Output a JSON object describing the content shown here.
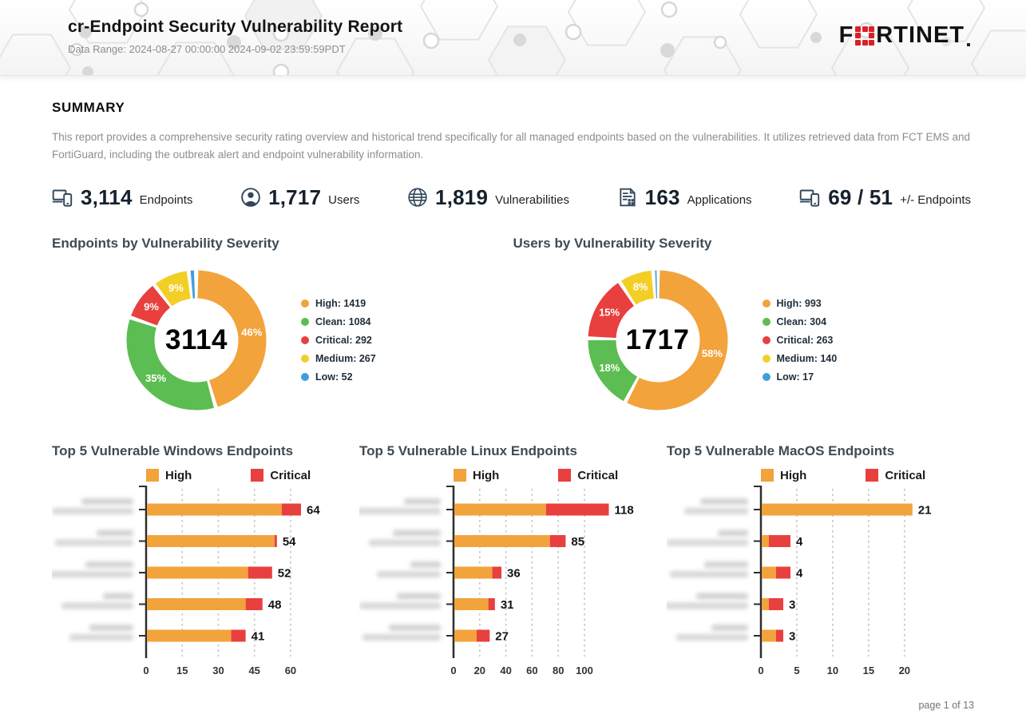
{
  "header": {
    "title": "cr-Endpoint Security Vulnerability Report",
    "date_range": "Data Range: 2024-08-27 00:00:00 2024-09-02 23:59:59PDT",
    "logo_text_left": "F",
    "logo_text_right": "RTINET"
  },
  "summary": {
    "heading": "SUMMARY",
    "description": "This report provides a comprehensive security rating overview and historical trend specifically for all managed endpoints based on the vulnerabilities. It utilizes retrieved data from FCT EMS and FortiGuard, including the outbreak alert and endpoint vulnerability information."
  },
  "stats": [
    {
      "icon": "devices-icon",
      "value": "3,114",
      "label": "Endpoints"
    },
    {
      "icon": "user-icon",
      "value": "1,717",
      "label": "Users"
    },
    {
      "icon": "globe-icon",
      "value": "1,819",
      "label": "Vulnerabilities"
    },
    {
      "icon": "applications-icon",
      "value": "163",
      "label": "Applications"
    },
    {
      "icon": "devices-change-icon",
      "value": "69 / 51",
      "label": "+/- Endpoints"
    }
  ],
  "colors": {
    "high": "#f2a33c",
    "clean": "#5cbd52",
    "critical": "#e8403e",
    "medium": "#f3cf26",
    "low": "#3f9fdc",
    "icon": "#33475b",
    "brand_red": "#da2026"
  },
  "chart_data": [
    {
      "type": "pie",
      "variant": "donut",
      "title": "Endpoints by Vulnerability Severity",
      "total": 3114,
      "legend_position": "right",
      "segments": [
        {
          "label": "High",
          "value": 1419,
          "pct_label": "46%",
          "color": "#f2a33c"
        },
        {
          "label": "Clean",
          "value": 1084,
          "pct_label": "35%",
          "color": "#5cbd52"
        },
        {
          "label": "Critical",
          "value": 292,
          "pct_label": "9%",
          "color": "#e8403e"
        },
        {
          "label": "Medium",
          "value": 267,
          "pct_label": "9%",
          "color": "#f3cf26"
        },
        {
          "label": "Low",
          "value": 52,
          "pct_label": "",
          "color": "#3f9fdc"
        }
      ]
    },
    {
      "type": "pie",
      "variant": "donut",
      "title": "Users by Vulnerability Severity",
      "total": 1717,
      "legend_position": "right",
      "segments": [
        {
          "label": "High",
          "value": 993,
          "pct_label": "58%",
          "color": "#f2a33c"
        },
        {
          "label": "Clean",
          "value": 304,
          "pct_label": "18%",
          "color": "#5cbd52"
        },
        {
          "label": "Critical",
          "value": 263,
          "pct_label": "15%",
          "color": "#e8403e"
        },
        {
          "label": "Medium",
          "value": 140,
          "pct_label": "8%",
          "color": "#f3cf26"
        },
        {
          "label": "Low",
          "value": 17,
          "pct_label": "",
          "color": "#3f9fdc"
        }
      ]
    },
    {
      "type": "bar",
      "orientation": "horizontal",
      "title": "Top 5 Vulnerable Windows Endpoints",
      "legend": [
        "High",
        "Critical"
      ],
      "x_ticks": [
        0,
        15,
        30,
        45,
        60
      ],
      "x_end": 65,
      "labels_redacted": true,
      "bars": [
        {
          "total": 64,
          "high": 56,
          "critical": 8
        },
        {
          "total": 54,
          "high": 53,
          "critical": 1
        },
        {
          "total": 52,
          "high": 42,
          "critical": 10
        },
        {
          "total": 48,
          "high": 41,
          "critical": 7
        },
        {
          "total": 41,
          "high": 35,
          "critical": 6
        }
      ]
    },
    {
      "type": "bar",
      "orientation": "horizontal",
      "title": "Top 5 Vulnerable Linux Endpoints",
      "legend": [
        "High",
        "Critical"
      ],
      "x_ticks": [
        0,
        20,
        40,
        60,
        80,
        100
      ],
      "x_end": 119.5,
      "labels_redacted": true,
      "bars": [
        {
          "total": 118,
          "high": 70,
          "critical": 48
        },
        {
          "total": 85,
          "high": 73,
          "critical": 12
        },
        {
          "total": 36,
          "high": 29,
          "critical": 7
        },
        {
          "total": 31,
          "high": 26,
          "critical": 5
        },
        {
          "total": 27,
          "high": 17,
          "critical": 10
        }
      ]
    },
    {
      "type": "bar",
      "orientation": "horizontal",
      "title": "Top 5 Vulnerable MacOS Endpoints",
      "legend": [
        "High",
        "Critical"
      ],
      "x_ticks": [
        0,
        5,
        10,
        15,
        20
      ],
      "x_end": 21.8,
      "labels_redacted": true,
      "bars": [
        {
          "total": 21,
          "high": 21,
          "critical": 0
        },
        {
          "total": 4,
          "high": 1,
          "critical": 3
        },
        {
          "total": 4,
          "high": 2,
          "critical": 2
        },
        {
          "total": 3,
          "high": 1,
          "critical": 2
        },
        {
          "total": 3,
          "high": 2,
          "critical": 1
        }
      ]
    }
  ],
  "footer": {
    "page_label": "page 1 of 13"
  }
}
